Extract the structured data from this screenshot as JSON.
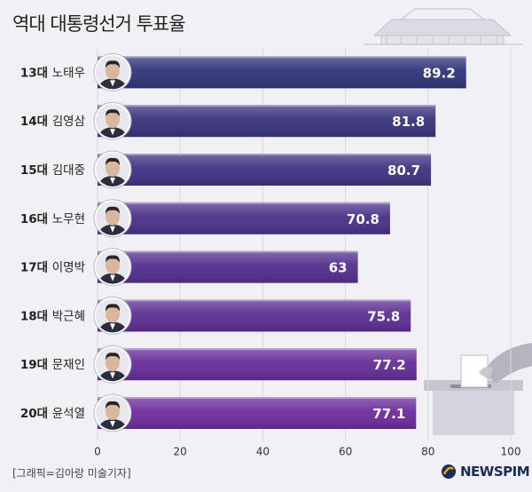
{
  "header": {
    "title": "역대 대통령선거 투표율"
  },
  "chart_data": {
    "type": "bar",
    "orientation": "horizontal",
    "title": "역대 대통령선거 투표율",
    "categories": [
      "13대 노태우",
      "14대 김영삼",
      "15대 김대중",
      "16대 노무현",
      "17대 이명박",
      "18대 박근혜",
      "19대 문재인",
      "20대 윤석열"
    ],
    "values": [
      89.2,
      81.8,
      80.7,
      70.8,
      63,
      75.8,
      77.2,
      77.1
    ],
    "value_labels": [
      "89.2",
      "81.8",
      "80.7",
      "70.8",
      "63",
      "75.8",
      "77.2",
      "77.1"
    ],
    "xlim": [
      0,
      100
    ],
    "x_ticks": [
      0,
      20,
      40,
      60,
      80,
      100
    ],
    "x_tick_labels": [
      "0",
      "20",
      "40",
      "60",
      "80",
      "100"
    ],
    "grid": true,
    "colors": {
      "bar_top": "#2e3478",
      "bar_bottom": "#6d2c9c",
      "label_text": "#ffffff"
    }
  },
  "footer": {
    "credit": "[그래픽=김아랑 미술기자]",
    "logo": "NEWSPIM"
  }
}
